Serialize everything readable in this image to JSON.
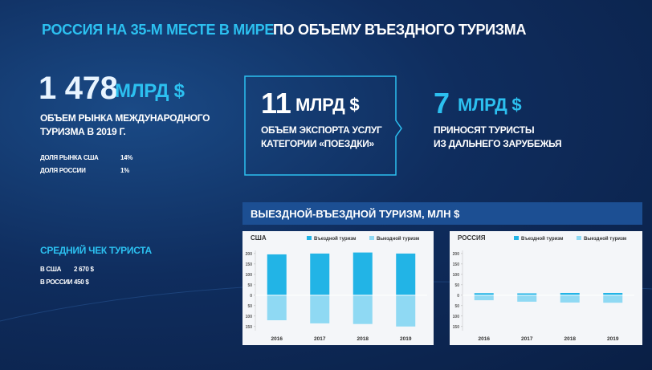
{
  "header": {
    "title_highlight": "РОССИЯ НА 35-М МЕСТЕ В МИРЕ",
    "title_rest": "ПО ОБЪЕМУ ВЪЕЗДНОГО ТУРИЗМА"
  },
  "market": {
    "value": "1 478",
    "unit": "МЛРД $",
    "lines": [
      "ОБЪЕМ РЫНКА МЕЖДУНАРОДНОГО",
      "ТУРИЗМА В 2019 Г."
    ],
    "shares": [
      {
        "label": "ДОЛЯ РЫНКА США",
        "value": "14%"
      },
      {
        "label": "ДОЛЯ РОССИИ",
        "value": "1%"
      }
    ]
  },
  "export": {
    "value": "11",
    "unit": "МЛРД $",
    "lines": [
      "ОБЪЕМ ЭКСПОРТА УСЛУГ",
      "КАТЕГОРИИ «ПОЕЗДКИ»"
    ]
  },
  "far_abroad": {
    "value": "7",
    "unit": "МЛРД $",
    "lines": [
      "ПРИНОСЯТ ТУРИСТЫ",
      "ИЗ ДАЛЬНЕГО ЗАРУБЕЖЬЯ"
    ]
  },
  "average_check": {
    "title": "СРЕДНИЙ ЧЕК ТУРИСТА",
    "rows": [
      {
        "label": "В США",
        "value": "2 670 $"
      },
      {
        "label": "В РОССИИ",
        "value": "450 $"
      }
    ]
  },
  "charts_banner": "ВЫЕЗДНОЙ-ВЪЕЗДНОЙ ТУРИЗМ, МЛН $",
  "chart_data": [
    {
      "type": "bar",
      "title": "США",
      "categories": [
        "2016",
        "2017",
        "2018",
        "2019"
      ],
      "series": [
        {
          "name": "Въездной туризм",
          "color": "#22b4e6",
          "values": [
            196,
            200,
            205,
            200
          ]
        },
        {
          "name": "Выездной туризм",
          "color": "#8fd9f3",
          "values": [
            -120,
            -135,
            -138,
            -150
          ]
        }
      ],
      "ylim": [
        -170,
        215
      ],
      "yticks": [
        {
          "value": -150,
          "label": "150"
        },
        {
          "value": -100,
          "label": "100"
        },
        {
          "value": -50,
          "label": "50"
        },
        0,
        50,
        100,
        150,
        200
      ]
    },
    {
      "type": "bar",
      "title": "РОССИЯ",
      "categories": [
        "2016",
        "2017",
        "2018",
        "2019"
      ],
      "series": [
        {
          "name": "Въездной туризм",
          "color": "#22b4e6",
          "values": [
            10,
            9,
            11,
            11
          ]
        },
        {
          "name": "Выездной туризм",
          "color": "#8fd9f3",
          "values": [
            -24,
            -31,
            -35,
            -36
          ]
        }
      ],
      "ylim": [
        -170,
        215
      ],
      "yticks": [
        {
          "value": -150,
          "label": "150"
        },
        {
          "value": -100,
          "label": "100"
        },
        {
          "value": -50,
          "label": "50"
        },
        0,
        50,
        100,
        150,
        200
      ]
    }
  ]
}
